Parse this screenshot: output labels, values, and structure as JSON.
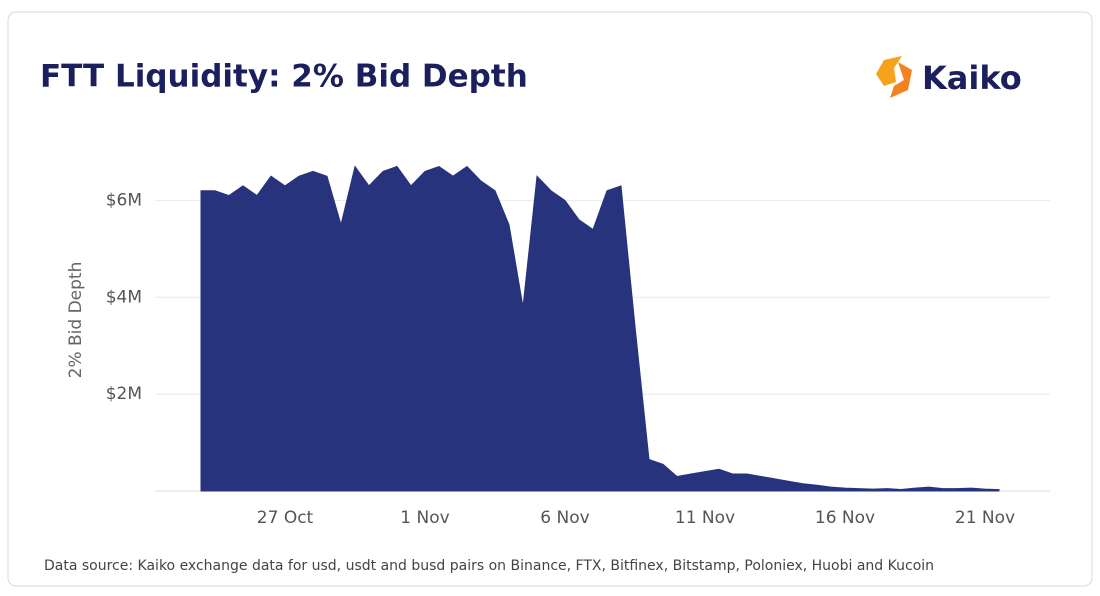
{
  "logo": "Kaiko",
  "chart_data": {
    "type": "area",
    "title": "FTT Liquidity: 2% Bid Depth",
    "y_label": "2% Bid Depth",
    "source": "Data source: Kaiko exchange data for usd, usdt and busd pairs on Binance, FTX, Bitfinex, Bitstamp, Poloniex, Huobi and Kucoin",
    "color": "#27337d",
    "grid": true,
    "categories": [
      null,
      null,
      null,
      null,
      null,
      null,
      "27 Oct",
      null,
      null,
      null,
      null,
      null,
      null,
      null,
      null,
      null,
      "1 Nov",
      null,
      null,
      null,
      null,
      null,
      null,
      null,
      null,
      null,
      "6 Nov",
      null,
      null,
      null,
      null,
      null,
      null,
      null,
      null,
      null,
      "11 Nov",
      null,
      null,
      null,
      null,
      null,
      null,
      null,
      null,
      null,
      "16 Nov",
      null,
      null,
      null,
      null,
      null,
      null,
      null,
      null,
      null,
      "21 Nov",
      null
    ],
    "values": [
      6200000,
      6200000,
      6100000,
      6300000,
      6100000,
      6500000,
      6300000,
      6500000,
      6600000,
      6500000,
      5500000,
      6700000,
      6300000,
      6600000,
      6700000,
      6300000,
      6600000,
      6700000,
      6500000,
      6700000,
      6400000,
      6200000,
      5500000,
      3800000,
      6500000,
      6200000,
      6000000,
      5600000,
      5400000,
      6200000,
      6300000,
      3400000,
      650000,
      550000,
      300000,
      350000,
      400000,
      450000,
      350000,
      350000,
      300000,
      250000,
      200000,
      150000,
      120000,
      80000,
      60000,
      50000,
      40000,
      50000,
      30000,
      60000,
      80000,
      50000,
      50000,
      60000,
      40000,
      30000
    ],
    "ylim": [
      0,
      7000000
    ],
    "yticks": [
      {
        "value": 2000000,
        "label": "$2M"
      },
      {
        "value": 4000000,
        "label": "$4M"
      },
      {
        "value": 6000000,
        "label": "$6M"
      }
    ]
  }
}
